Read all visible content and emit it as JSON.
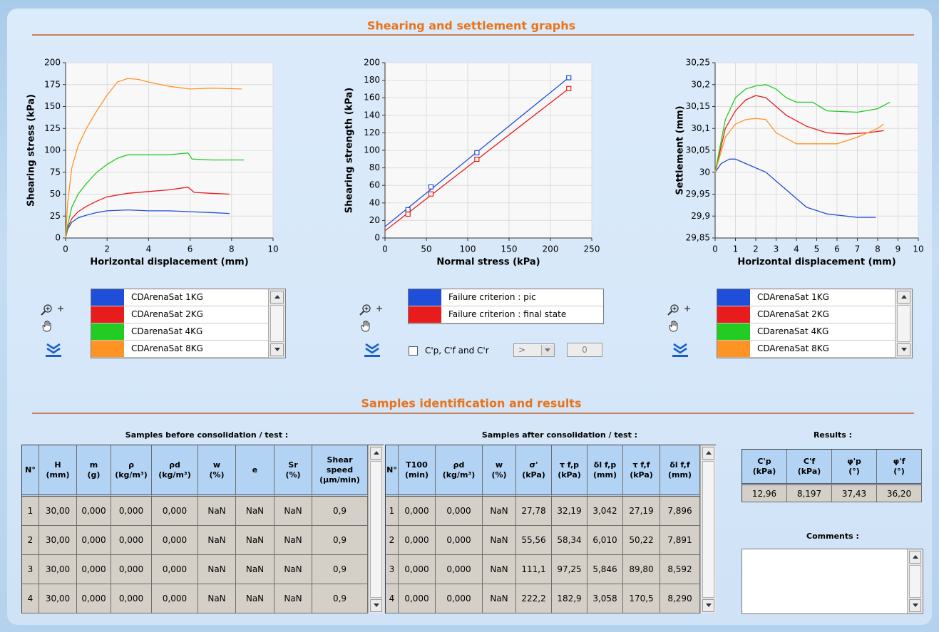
{
  "header": {
    "title": "Shearing and settlement graphs"
  },
  "chart_data": [
    {
      "type": "line",
      "x_label": "Horizontal displacement (mm)",
      "y_label": "Shearing stress (kPa)",
      "xlim": [
        0,
        10
      ],
      "xticks": [
        0,
        2,
        4,
        6,
        8,
        10
      ],
      "ylim": [
        0,
        200
      ],
      "yticks": [
        0,
        25,
        50,
        75,
        100,
        125,
        150,
        175,
        200
      ],
      "grid": true,
      "series": [
        {
          "name": "CDArenaSat 1KG",
          "color": "#1f4fd8",
          "x": [
            0,
            0.1,
            0.3,
            0.6,
            1,
            1.5,
            2,
            3,
            4,
            5,
            6,
            7,
            7.9
          ],
          "values": [
            0,
            10,
            18,
            23,
            26,
            29,
            31,
            32,
            31,
            31,
            30,
            29,
            28
          ]
        },
        {
          "name": "CDArenaSat 2KG",
          "color": "#e81c1c",
          "x": [
            0,
            0.1,
            0.3,
            0.6,
            1,
            1.5,
            2,
            3,
            4,
            5,
            5.9,
            6.2,
            7,
            7.9
          ],
          "values": [
            0,
            12,
            22,
            30,
            36,
            42,
            47,
            51,
            53,
            55,
            58,
            52,
            51,
            50
          ]
        },
        {
          "name": "CDarenaSat 4KG",
          "color": "#22cc22",
          "x": [
            0,
            0.1,
            0.3,
            0.6,
            1,
            1.5,
            2,
            2.5,
            3,
            4,
            5,
            5.9,
            6.1,
            7,
            8.6
          ],
          "values": [
            0,
            15,
            35,
            50,
            62,
            75,
            84,
            91,
            95,
            95,
            95,
            97,
            90,
            89,
            89
          ]
        },
        {
          "name": "CDArenaSat 8KG",
          "color": "#ff9424",
          "x": [
            0,
            0.1,
            0.3,
            0.6,
            1,
            1.5,
            2,
            2.5,
            3,
            3.5,
            4,
            5,
            6,
            7,
            8.5
          ],
          "values": [
            0,
            40,
            80,
            105,
            125,
            145,
            163,
            178,
            182,
            181,
            178,
            173,
            170,
            171,
            170
          ]
        }
      ]
    },
    {
      "type": "scatter",
      "x_label": "Normal stress (kPa)",
      "y_label": "Shearing strength (kPa)",
      "xlim": [
        0,
        250
      ],
      "xticks": [
        0,
        50,
        100,
        150,
        200,
        250
      ],
      "ylim": [
        0,
        200
      ],
      "yticks": [
        0,
        20,
        40,
        60,
        80,
        100,
        120,
        140,
        160,
        180,
        200
      ],
      "grid": true,
      "series": [
        {
          "name": "Failure criterion : pic",
          "color": "#1f4fd8",
          "x": [
            27.78,
            55.56,
            111.1,
            222.2
          ],
          "values": [
            32.19,
            58.34,
            97.25,
            182.9
          ],
          "line_x": [
            0,
            222.2
          ],
          "line_values": [
            13,
            183
          ]
        },
        {
          "name": "Failure criterion : final state",
          "color": "#e81c1c",
          "x": [
            27.78,
            55.56,
            111.1,
            222.2
          ],
          "values": [
            27.19,
            50.22,
            89.8,
            170.5
          ],
          "line_x": [
            0,
            222.2
          ],
          "line_values": [
            8.2,
            170.5
          ]
        }
      ]
    },
    {
      "type": "line",
      "x_label": "Horizontal displacement (mm)",
      "y_label": "Settlement (mm)",
      "xlim": [
        0,
        10
      ],
      "xticks": [
        0,
        1,
        2,
        3,
        4,
        5,
        6,
        7,
        8,
        9,
        10
      ],
      "ylim": [
        29.85,
        30.25
      ],
      "yticks": [
        {
          "value": 29.85,
          "label": "29,85"
        },
        {
          "value": 29.9,
          "label": "29,9"
        },
        {
          "value": 29.95,
          "label": "29,95"
        },
        30,
        {
          "value": 30.05,
          "label": "30,05"
        },
        {
          "value": 30.1,
          "label": "30,1"
        },
        {
          "value": 30.15,
          "label": "30,15"
        },
        {
          "value": 30.2,
          "label": "30,2"
        },
        {
          "value": 30.25,
          "label": "30,25"
        }
      ],
      "grid": true,
      "series": [
        {
          "name": "CDArenaSat 1KG",
          "color": "#1f4fd8",
          "x": [
            0,
            0.3,
            0.7,
            1,
            1.5,
            2,
            2.5,
            3,
            3.5,
            4,
            4.5,
            5.5,
            7,
            7.9
          ],
          "values": [
            30,
            30.02,
            30.03,
            30.03,
            30.02,
            30.01,
            30,
            29.98,
            29.96,
            29.94,
            29.92,
            29.905,
            29.897,
            29.897
          ]
        },
        {
          "name": "CDArenaSat 2KG",
          "color": "#e81c1c",
          "x": [
            0,
            0.5,
            1,
            1.5,
            2,
            2.5,
            3,
            3.5,
            4.5,
            5.5,
            6.5,
            7.5,
            8.3
          ],
          "values": [
            30,
            30.1,
            30.14,
            30.165,
            30.175,
            30.17,
            30.15,
            30.13,
            30.105,
            30.09,
            30.087,
            30.09,
            30.095
          ]
        },
        {
          "name": "CDarenaSat 4KG",
          "color": "#22cc22",
          "x": [
            0,
            0.5,
            1,
            1.5,
            2,
            2.5,
            3,
            3.5,
            4,
            4.8,
            5.5,
            7,
            8,
            8.6
          ],
          "values": [
            30,
            30.12,
            30.17,
            30.19,
            30.197,
            30.2,
            30.19,
            30.17,
            30.16,
            30.16,
            30.14,
            30.137,
            30.145,
            30.16
          ]
        },
        {
          "name": "CDArenaSat 8KG",
          "color": "#ff9424",
          "x": [
            0,
            0.5,
            1,
            1.5,
            2,
            2.5,
            3,
            4,
            5,
            6,
            7,
            8,
            8.3
          ],
          "values": [
            30,
            30.08,
            30.11,
            30.12,
            30.123,
            30.12,
            30.09,
            30.065,
            30.065,
            30.065,
            30.08,
            30.1,
            30.11
          ]
        }
      ]
    }
  ],
  "controls": {
    "checkbox_label": "C'p, C'f and C'r",
    "operator": ">",
    "threshold": "0"
  },
  "section2": {
    "title": "Samples identification and results"
  },
  "table_before": {
    "title": "Samples before consolidation / test :",
    "columns": [
      {
        "name": "N°"
      },
      {
        "name": "H",
        "unit": "(mm)"
      },
      {
        "name": "m",
        "unit": "(g)"
      },
      {
        "name": "ρ",
        "unit": "(kg/m³)"
      },
      {
        "name": "ρd",
        "unit": "(kg/m³)"
      },
      {
        "name": "w",
        "unit": "(%)"
      },
      {
        "name": "e"
      },
      {
        "name": "Sr",
        "unit": "(%)"
      },
      {
        "name": "Shear speed",
        "unit": "(µm/min)"
      }
    ],
    "rows": [
      [
        "1",
        "30,00",
        "0,000",
        "0,000",
        "0,000",
        "NaN",
        "NaN",
        "NaN",
        "0,9"
      ],
      [
        "2",
        "30,00",
        "0,000",
        "0,000",
        "0,000",
        "NaN",
        "NaN",
        "NaN",
        "0,9"
      ],
      [
        "3",
        "30,00",
        "0,000",
        "0,000",
        "0,000",
        "NaN",
        "NaN",
        "NaN",
        "0,9"
      ],
      [
        "4",
        "30,00",
        "0,000",
        "0,000",
        "0,000",
        "NaN",
        "NaN",
        "NaN",
        "0,9"
      ]
    ]
  },
  "table_after": {
    "title": "Samples after consolidation / test :",
    "columns": [
      {
        "name": "N°"
      },
      {
        "name": "T100",
        "unit": "(min)"
      },
      {
        "name": "ρd",
        "unit": "(kg/m³)"
      },
      {
        "name": "w",
        "unit": "(%)"
      },
      {
        "name": "σ'",
        "unit": "(kPa)"
      },
      {
        "name": "τ f,p",
        "unit": "(kPa)"
      },
      {
        "name": "δl f,p",
        "unit": "(mm)"
      },
      {
        "name": "τ f,f",
        "unit": "(kPa)"
      },
      {
        "name": "δl f,f",
        "unit": "(mm)"
      }
    ],
    "rows": [
      [
        "1",
        "0,000",
        "0,000",
        "NaN",
        "27,78",
        "32,19",
        "3,042",
        "27,19",
        "7,896"
      ],
      [
        "2",
        "0,000",
        "0,000",
        "NaN",
        "55,56",
        "58,34",
        "6,010",
        "50,22",
        "7,891"
      ],
      [
        "3",
        "0,000",
        "0,000",
        "NaN",
        "111,1",
        "97,25",
        "5,846",
        "89,80",
        "8,592"
      ],
      [
        "4",
        "0,000",
        "0,000",
        "NaN",
        "222,2",
        "182,9",
        "3,058",
        "170,5",
        "8,290"
      ]
    ]
  },
  "results": {
    "title": "Results :",
    "columns": [
      {
        "name": "C'p",
        "unit": "(kPa)"
      },
      {
        "name": "C'f",
        "unit": "(kPa)"
      },
      {
        "name": "φ'p",
        "unit": "(°)"
      },
      {
        "name": "φ'f",
        "unit": "(°)"
      }
    ],
    "rows": [
      [
        "12,96",
        "8,197",
        "37,43",
        "36,20"
      ]
    ]
  },
  "comments": {
    "label": "Comments :"
  }
}
